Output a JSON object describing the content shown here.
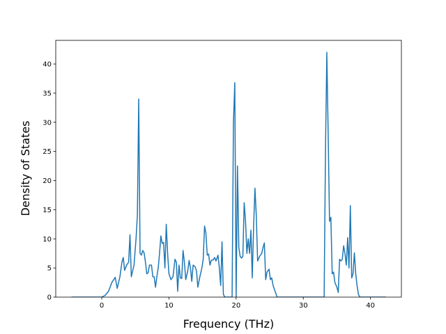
{
  "chart_data": {
    "type": "line",
    "xlabel": "Frequency (THz)",
    "ylabel": "Density of States",
    "x": [
      -4.5,
      0,
      0.5,
      1,
      1.5,
      2,
      2.3,
      2.7,
      3,
      3.2,
      3.4,
      3.7,
      4,
      4.2,
      4.4,
      4.8,
      5.1,
      5.3,
      5.5,
      5.7,
      5.9,
      6.1,
      6.3,
      6.5,
      6.7,
      6.9,
      7.1,
      7.4,
      7.6,
      7.8,
      8,
      8.2,
      8.4,
      8.6,
      8.8,
      9,
      9.2,
      9.4,
      9.6,
      9.8,
      10,
      10.3,
      10.6,
      10.9,
      11.1,
      11.3,
      11.5,
      11.7,
      11.9,
      12.1,
      12.3,
      12.5,
      12.8,
      13,
      13.2,
      13.4,
      13.6,
      13.9,
      14.1,
      14.3,
      14.6,
      14.9,
      15.1,
      15.3,
      15.5,
      15.7,
      15.9,
      16.1,
      16.3,
      16.6,
      16.8,
      17,
      17.3,
      17.5,
      17.7,
      17.9,
      18.1,
      18.3,
      19,
      19.4,
      19.6,
      19.8,
      20,
      20.2,
      20.4,
      20.6,
      20.8,
      21,
      21.2,
      21.4,
      21.6,
      21.8,
      22,
      22.2,
      22.4,
      22.6,
      22.8,
      23,
      23.2,
      23.5,
      23.8,
      24,
      24.2,
      24.4,
      24.6,
      24.9,
      25.1,
      25.3,
      25.5,
      25.8,
      26.1,
      33.1,
      33.3,
      33.5,
      33.7,
      33.9,
      34.1,
      34.3,
      34.5,
      34.7,
      35,
      35.2,
      35.4,
      35.6,
      35.8,
      36,
      36.2,
      36.4,
      36.6,
      36.8,
      37,
      37.2,
      37.4,
      37.6,
      37.8,
      38,
      38.2,
      38.4,
      42.3
    ],
    "series": [
      {
        "color": "#1f77b4",
        "values": [
          0,
          0,
          0.3,
          1,
          2.5,
          3.4,
          1.5,
          3.5,
          6,
          6.8,
          4.6,
          5.5,
          6,
          10.7,
          3.5,
          5.5,
          10,
          14,
          34,
          7.5,
          7.2,
          8,
          7.6,
          6,
          4,
          4.2,
          5.5,
          5.5,
          3.5,
          3.5,
          1.7,
          3.5,
          5,
          7.5,
          10.5,
          9.2,
          9.4,
          5,
          12.5,
          7.5,
          4,
          3,
          3.5,
          6.5,
          6,
          1,
          5.5,
          3.3,
          3.2,
          8,
          6,
          3,
          4.5,
          6.3,
          5,
          2.7,
          5.5,
          5.2,
          4.5,
          1.7,
          3.5,
          5,
          6.5,
          12.2,
          11,
          7.2,
          7.4,
          5.5,
          6.3,
          6.4,
          6.8,
          6.2,
          7.2,
          5,
          2,
          9.5,
          0.5,
          0,
          0,
          0,
          30,
          36.8,
          0,
          22.5,
          8.5,
          7,
          6.7,
          7,
          16.2,
          13,
          7.5,
          10,
          7.5,
          11.5,
          3.3,
          12,
          18.7,
          14,
          6.2,
          7,
          7.5,
          8.5,
          9.3,
          3,
          4.3,
          4.8,
          3,
          3.3,
          2,
          1,
          0,
          0,
          25,
          42,
          28,
          13,
          13.7,
          4,
          4.3,
          2.5,
          1.7,
          0.8,
          6.5,
          6.2,
          6.5,
          8.8,
          7.5,
          5.5,
          10.2,
          5,
          15.7,
          3.3,
          4,
          7.6,
          4,
          2,
          0.5,
          0,
          0
        ]
      }
    ],
    "xlim": [
      -6.85,
      44.6
    ],
    "ylim": [
      0,
      44.06
    ],
    "xticks": [
      0,
      10,
      20,
      30,
      40
    ],
    "yticks": [
      0,
      5,
      10,
      15,
      20,
      25,
      30,
      35,
      40
    ]
  }
}
